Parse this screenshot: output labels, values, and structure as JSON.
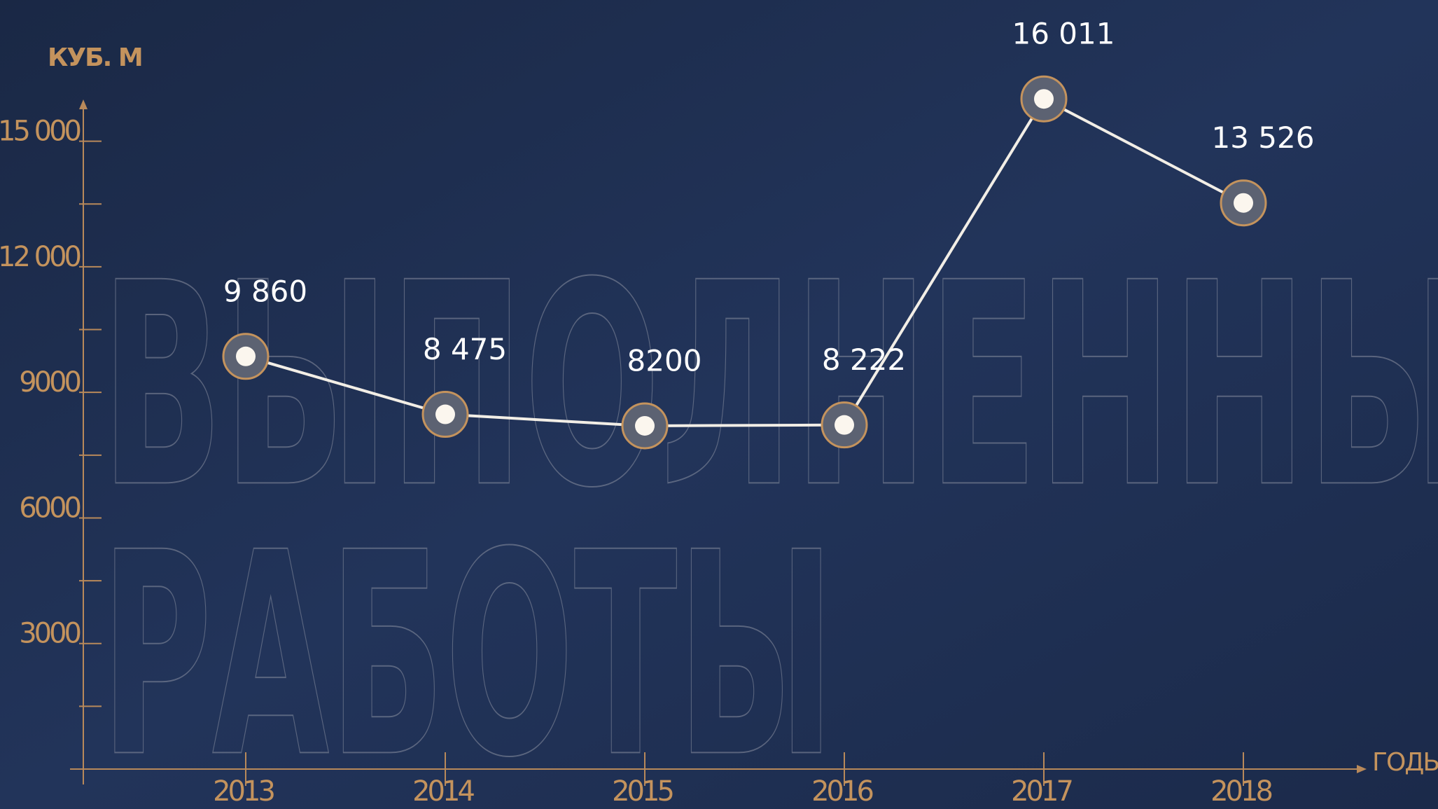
{
  "chart_data": {
    "type": "line",
    "background_text": [
      "ВЫПОЛНЕННЫ",
      "РАБОТЫ"
    ],
    "y_label": "КУБ. М",
    "x_label": "ГОДЫ",
    "categories": [
      "2013",
      "2014",
      "2015",
      "2016",
      "2017",
      "2018"
    ],
    "values": [
      9860,
      8475,
      8200,
      8222,
      16011,
      13526
    ],
    "value_labels": [
      "9 860",
      "8 475",
      "8200",
      "8 222",
      "16 011",
      "13 526"
    ],
    "color": "#f2eee6",
    "ylim": [
      0,
      16500
    ],
    "yticks": [
      3000,
      6000,
      9000,
      {
        "value": 12000,
        "label": "12 000"
      },
      {
        "value": 15000,
        "label": "15 000"
      }
    ],
    "minor_yticks": [
      1500,
      4500,
      7500,
      10500,
      13500
    ]
  }
}
